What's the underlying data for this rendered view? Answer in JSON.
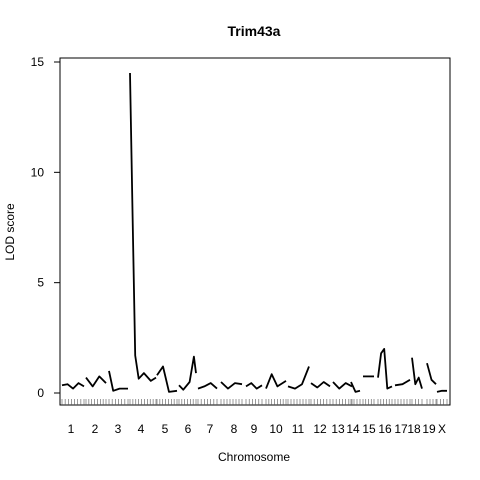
{
  "chart_data": {
    "type": "line",
    "title": "Trim43a",
    "xlabel": "Chromosome",
    "ylabel": "LOD score",
    "ylim": [
      0,
      15
    ],
    "yticks": [
      0,
      5,
      10,
      15
    ],
    "chromosomes": [
      "1",
      "2",
      "3",
      "4",
      "5",
      "6",
      "7",
      "8",
      "9",
      "10",
      "11",
      "12",
      "13",
      "14",
      "15",
      "16",
      "17",
      "18",
      "19",
      "X"
    ],
    "series": [
      {
        "chrom": "1",
        "points": [
          [
            0,
            0.35
          ],
          [
            3,
            0.4
          ],
          [
            6,
            0.2
          ],
          [
            9,
            0.45
          ],
          [
            12,
            0.3
          ]
        ]
      },
      {
        "chrom": "2",
        "points": [
          [
            0,
            0.7
          ],
          [
            4,
            0.3
          ],
          [
            8,
            0.75
          ],
          [
            12,
            0.45
          ]
        ]
      },
      {
        "chrom": "3",
        "points": [
          [
            0,
            1.0
          ],
          [
            2,
            0.1
          ],
          [
            5,
            0.2
          ],
          [
            9,
            0.2
          ]
        ]
      },
      {
        "chrom": "4",
        "points": [
          [
            0,
            14.5
          ],
          [
            1.5,
            8
          ],
          [
            3,
            1.7
          ],
          [
            5,
            0.65
          ],
          [
            8,
            0.9
          ],
          [
            12,
            0.55
          ],
          [
            15,
            0.7
          ]
        ]
      },
      {
        "chrom": "5",
        "points": [
          [
            0,
            0.8
          ],
          [
            3,
            1.2
          ],
          [
            6,
            0.05
          ],
          [
            10,
            0.1
          ]
        ]
      },
      {
        "chrom": "6",
        "points": [
          [
            0,
            0.35
          ],
          [
            2,
            0.15
          ],
          [
            5,
            0.5
          ],
          [
            7,
            1.65
          ],
          [
            8,
            0.9
          ]
        ]
      },
      {
        "chrom": "7",
        "points": [
          [
            0,
            0.2
          ],
          [
            3,
            0.3
          ],
          [
            6,
            0.45
          ],
          [
            9,
            0.2
          ]
        ]
      },
      {
        "chrom": "8",
        "points": [
          [
            0,
            0.5
          ],
          [
            3,
            0.2
          ],
          [
            6,
            0.45
          ],
          [
            9,
            0.4
          ]
        ]
      },
      {
        "chrom": "9",
        "points": [
          [
            0,
            0.3
          ],
          [
            3,
            0.45
          ],
          [
            6,
            0.2
          ],
          [
            9,
            0.35
          ]
        ]
      },
      {
        "chrom": "10",
        "points": [
          [
            0,
            0.2
          ],
          [
            2,
            0.85
          ],
          [
            4,
            0.3
          ],
          [
            7,
            0.55
          ]
        ]
      },
      {
        "chrom": "11",
        "points": [
          [
            0,
            0.3
          ],
          [
            3,
            0.2
          ],
          [
            6,
            0.4
          ],
          [
            9,
            1.2
          ]
        ]
      },
      {
        "chrom": "12",
        "points": [
          [
            0,
            0.45
          ],
          [
            3,
            0.25
          ],
          [
            6,
            0.5
          ],
          [
            9,
            0.3
          ]
        ]
      },
      {
        "chrom": "13",
        "points": [
          [
            0,
            0.5
          ],
          [
            3,
            0.2
          ],
          [
            6,
            0.45
          ],
          [
            9,
            0.3
          ]
        ]
      },
      {
        "chrom": "14",
        "points": [
          [
            0,
            0.5
          ],
          [
            3,
            0.05
          ],
          [
            6,
            0.1
          ]
        ]
      },
      {
        "chrom": "15",
        "points": [
          [
            0,
            0.75
          ],
          [
            3,
            0.75
          ]
        ]
      },
      {
        "chrom": "16",
        "points": [
          [
            0,
            0.7
          ],
          [
            2,
            1.8
          ],
          [
            4,
            2.0
          ],
          [
            6,
            0.2
          ],
          [
            9,
            0.3
          ]
        ]
      },
      {
        "chrom": "17",
        "points": [
          [
            0,
            0.35
          ],
          [
            3,
            0.4
          ],
          [
            6,
            0.6
          ]
        ]
      },
      {
        "chrom": "18",
        "points": [
          [
            0,
            1.6
          ],
          [
            2,
            0.4
          ],
          [
            4,
            0.7
          ],
          [
            6,
            0.2
          ]
        ]
      },
      {
        "chrom": "19",
        "points": [
          [
            0,
            1.35
          ],
          [
            2,
            0.6
          ],
          [
            4,
            0.4
          ]
        ]
      },
      {
        "chrom": "X",
        "points": [
          [
            0,
            0.05
          ],
          [
            3,
            0.1
          ],
          [
            6,
            0.1
          ]
        ]
      }
    ]
  }
}
